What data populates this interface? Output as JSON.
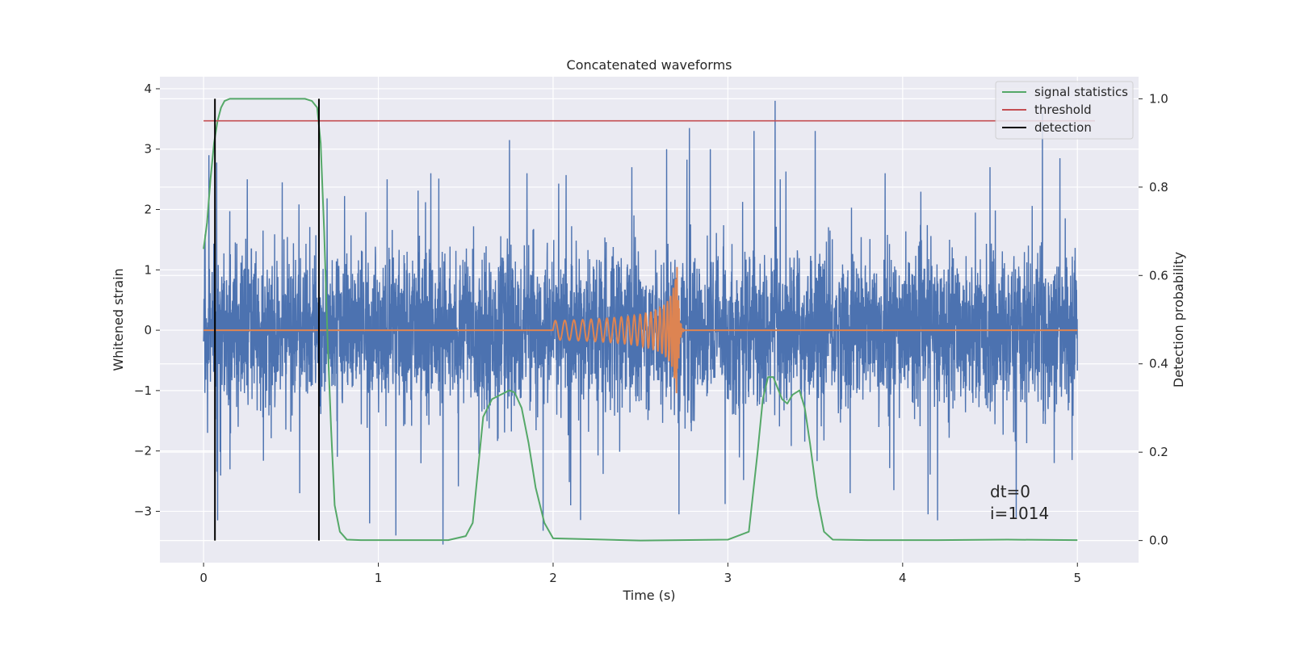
{
  "chart_data": {
    "type": "line",
    "title": "Concatenated waveforms",
    "xlabel": "Time (s)",
    "ylabel": "Whitened strain",
    "y2label": "Detection probability",
    "xlim": [
      -0.25,
      5.35
    ],
    "ylim": [
      -3.85,
      4.2
    ],
    "y2lim": [
      -0.05,
      1.05
    ],
    "xticks": [
      0,
      1,
      2,
      3,
      4,
      5
    ],
    "xticklabels": [
      "0",
      "1",
      "2",
      "3",
      "4",
      "5"
    ],
    "yticks": [
      -3,
      -2,
      -1,
      0,
      1,
      2,
      3,
      4
    ],
    "yticklabels": [
      "−3",
      "−2",
      "−1",
      "0",
      "1",
      "2",
      "3",
      "4"
    ],
    "y2ticks": [
      0.0,
      0.2,
      0.4,
      0.6,
      0.8,
      1.0
    ],
    "y2ticklabels": [
      "0.0",
      "0.2",
      "0.4",
      "0.6",
      "0.8",
      "1.0"
    ],
    "grid": true,
    "legend_position": "top-right",
    "series": [
      {
        "name": "",
        "axis": "left",
        "color": "#4c72b0",
        "kind": "noise",
        "x_range": [
          0,
          5
        ],
        "typical_amplitude": 0.6,
        "peaks": [
          [
            0.03,
            2.9
          ],
          [
            0.08,
            -3.15
          ],
          [
            0.25,
            2.5
          ],
          [
            0.45,
            2.45
          ],
          [
            0.55,
            -2.7
          ],
          [
            0.95,
            -3.2
          ],
          [
            1.05,
            2.5
          ],
          [
            1.1,
            -3.4
          ],
          [
            1.3,
            2.6
          ],
          [
            1.37,
            -3.55
          ],
          [
            1.75,
            3.15
          ],
          [
            1.85,
            2.6
          ],
          [
            2.1,
            -2.9
          ],
          [
            2.45,
            2.7
          ],
          [
            2.65,
            3.0
          ],
          [
            2.72,
            -3.05
          ],
          [
            2.78,
            3.35
          ],
          [
            2.9,
            3.0
          ],
          [
            3.15,
            3.3
          ],
          [
            3.27,
            3.8
          ],
          [
            3.3,
            2.5
          ],
          [
            3.5,
            3.3
          ],
          [
            3.7,
            -2.7
          ],
          [
            3.9,
            2.6
          ],
          [
            3.95,
            -2.65
          ],
          [
            4.2,
            -3.15
          ],
          [
            4.5,
            2.7
          ],
          [
            4.65,
            -3.1
          ],
          [
            4.8,
            3.6
          ],
          [
            4.9,
            2.85
          ],
          [
            4.97,
            -2.15
          ]
        ]
      },
      {
        "name": "",
        "axis": "left",
        "color": "#dd8452",
        "kind": "chirp",
        "x_range": [
          0,
          5
        ],
        "chirp_start": 2.0,
        "merger": 2.71,
        "ringdown_end": 2.75,
        "peak_amplitude": 1.3
      },
      {
        "name": "signal statistics",
        "axis": "right",
        "color": "#55a868",
        "x": [
          0.0,
          0.02,
          0.04,
          0.06,
          0.08,
          0.1,
          0.12,
          0.15,
          0.2,
          0.3,
          0.4,
          0.5,
          0.58,
          0.62,
          0.65,
          0.67,
          0.69,
          0.71,
          0.73,
          0.75,
          0.78,
          0.82,
          0.9,
          1.2,
          1.4,
          1.5,
          1.54,
          1.57,
          1.6,
          1.65,
          1.7,
          1.75,
          1.78,
          1.82,
          1.86,
          1.9,
          1.95,
          2.0,
          2.5,
          3.0,
          3.12,
          3.17,
          3.2,
          3.23,
          3.26,
          3.28,
          3.31,
          3.34,
          3.37,
          3.41,
          3.44,
          3.47,
          3.51,
          3.55,
          3.6,
          3.8,
          4.2,
          4.6,
          5.0
        ],
        "y": [
          0.66,
          0.72,
          0.82,
          0.9,
          0.95,
          0.98,
          0.995,
          1.0,
          1.0,
          1.0,
          1.0,
          1.0,
          1.0,
          0.995,
          0.98,
          0.9,
          0.7,
          0.45,
          0.25,
          0.08,
          0.02,
          0.002,
          0.001,
          0.001,
          0.001,
          0.01,
          0.04,
          0.16,
          0.28,
          0.32,
          0.33,
          0.34,
          0.335,
          0.3,
          0.22,
          0.12,
          0.04,
          0.005,
          0.0,
          0.002,
          0.02,
          0.2,
          0.32,
          0.37,
          0.37,
          0.35,
          0.32,
          0.31,
          0.33,
          0.34,
          0.3,
          0.22,
          0.1,
          0.02,
          0.002,
          0.001,
          0.001,
          0.002,
          0.001
        ]
      },
      {
        "name": "threshold",
        "axis": "right",
        "color": "#c44e52",
        "x": [
          0,
          5.1
        ],
        "y": [
          0.95,
          0.95
        ]
      },
      {
        "name": "detection",
        "axis": "right",
        "color": "#000000",
        "vlines": [
          0.065,
          0.66
        ],
        "vrange": [
          0.0,
          1.0
        ]
      }
    ],
    "annotations": [
      "dt=0",
      "i=1014"
    ]
  }
}
